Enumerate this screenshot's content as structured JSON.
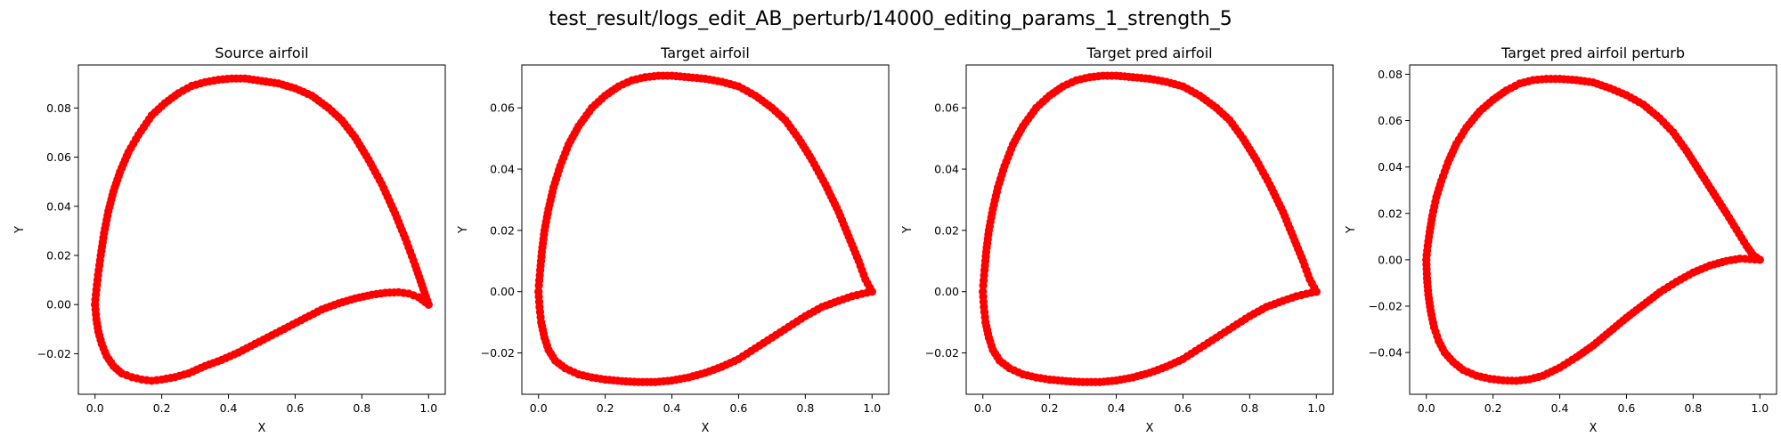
{
  "figure": {
    "suptitle": "test_result/logs_edit_AB_perturb/14000_editing_params_1_strength_5"
  },
  "chart_data": [
    {
      "type": "scatter",
      "title": "Source airfoil",
      "xlabel": "X",
      "ylabel": "Y",
      "color": "#ff0000",
      "xlim": [
        -0.05,
        1.05
      ],
      "ylim": [
        -0.0365,
        0.0975
      ],
      "xticks": [
        0.0,
        0.2,
        0.4,
        0.6,
        0.8,
        1.0
      ],
      "xtick_labels": [
        "0.0",
        "0.2",
        "0.4",
        "0.6",
        "0.8",
        "1.0"
      ],
      "yticks": [
        -0.02,
        0.0,
        0.02,
        0.04,
        0.06,
        0.08
      ],
      "ytick_labels": [
        "−0.02",
        "0.00",
        "0.02",
        "0.04",
        "0.06",
        "0.08"
      ],
      "upper": [
        [
          1.0,
          0.0
        ],
        [
          0.98,
          0.008
        ],
        [
          0.96,
          0.016
        ],
        [
          0.93,
          0.027
        ],
        [
          0.9,
          0.037
        ],
        [
          0.86,
          0.049
        ],
        [
          0.82,
          0.059
        ],
        [
          0.78,
          0.068
        ],
        [
          0.74,
          0.075
        ],
        [
          0.7,
          0.08
        ],
        [
          0.65,
          0.085
        ],
        [
          0.6,
          0.088
        ],
        [
          0.55,
          0.09
        ],
        [
          0.5,
          0.091
        ],
        [
          0.45,
          0.092
        ],
        [
          0.41,
          0.092
        ],
        [
          0.37,
          0.0915
        ],
        [
          0.33,
          0.0905
        ],
        [
          0.29,
          0.089
        ],
        [
          0.25,
          0.086
        ],
        [
          0.21,
          0.082
        ],
        [
          0.17,
          0.077
        ],
        [
          0.13,
          0.069
        ],
        [
          0.1,
          0.062
        ],
        [
          0.075,
          0.054
        ],
        [
          0.055,
          0.046
        ],
        [
          0.04,
          0.038
        ],
        [
          0.027,
          0.029
        ],
        [
          0.017,
          0.02
        ],
        [
          0.009,
          0.012
        ],
        [
          0.004,
          0.006
        ],
        [
          0.001,
          0.002
        ],
        [
          0.0,
          0.0
        ]
      ],
      "lower": [
        [
          0.0,
          0.0
        ],
        [
          0.004,
          -0.006
        ],
        [
          0.01,
          -0.011
        ],
        [
          0.02,
          -0.016
        ],
        [
          0.035,
          -0.021
        ],
        [
          0.055,
          -0.025
        ],
        [
          0.08,
          -0.028
        ],
        [
          0.11,
          -0.0295
        ],
        [
          0.14,
          -0.0305
        ],
        [
          0.17,
          -0.031
        ],
        [
          0.2,
          -0.0305
        ],
        [
          0.24,
          -0.0295
        ],
        [
          0.28,
          -0.028
        ],
        [
          0.33,
          -0.025
        ],
        [
          0.38,
          -0.0225
        ],
        [
          0.43,
          -0.0195
        ],
        [
          0.48,
          -0.016
        ],
        [
          0.53,
          -0.0125
        ],
        [
          0.58,
          -0.009
        ],
        [
          0.63,
          -0.0055
        ],
        [
          0.68,
          -0.002
        ],
        [
          0.73,
          0.0005
        ],
        [
          0.78,
          0.0025
        ],
        [
          0.83,
          0.004
        ],
        [
          0.87,
          0.0048
        ],
        [
          0.91,
          0.005
        ],
        [
          0.94,
          0.0045
        ],
        [
          0.97,
          0.003
        ],
        [
          0.99,
          0.001
        ],
        [
          1.0,
          0.0
        ]
      ]
    },
    {
      "type": "scatter",
      "title": "Target airfoil",
      "xlabel": "X",
      "ylabel": "Y",
      "color": "#ff0000",
      "xlim": [
        -0.05,
        1.05
      ],
      "ylim": [
        -0.0335,
        0.074
      ],
      "xticks": [
        0.0,
        0.2,
        0.4,
        0.6,
        0.8,
        1.0
      ],
      "xtick_labels": [
        "0.0",
        "0.2",
        "0.4",
        "0.6",
        "0.8",
        "1.0"
      ],
      "yticks": [
        -0.02,
        0.0,
        0.02,
        0.04,
        0.06
      ],
      "ytick_labels": [
        "−0.02",
        "0.00",
        "0.02",
        "0.04",
        "0.06"
      ],
      "upper": [
        [
          1.0,
          0.0
        ],
        [
          0.98,
          0.004
        ],
        [
          0.96,
          0.01
        ],
        [
          0.93,
          0.018
        ],
        [
          0.9,
          0.026
        ],
        [
          0.86,
          0.035
        ],
        [
          0.82,
          0.043
        ],
        [
          0.78,
          0.05
        ],
        [
          0.74,
          0.056
        ],
        [
          0.7,
          0.06
        ],
        [
          0.65,
          0.064
        ],
        [
          0.6,
          0.067
        ],
        [
          0.55,
          0.0685
        ],
        [
          0.5,
          0.0695
        ],
        [
          0.45,
          0.07
        ],
        [
          0.4,
          0.0705
        ],
        [
          0.36,
          0.0705
        ],
        [
          0.32,
          0.07
        ],
        [
          0.28,
          0.069
        ],
        [
          0.24,
          0.067
        ],
        [
          0.2,
          0.064
        ],
        [
          0.16,
          0.06
        ],
        [
          0.12,
          0.054
        ],
        [
          0.09,
          0.048
        ],
        [
          0.065,
          0.041
        ],
        [
          0.045,
          0.034
        ],
        [
          0.03,
          0.027
        ],
        [
          0.018,
          0.02
        ],
        [
          0.01,
          0.013
        ],
        [
          0.005,
          0.007
        ],
        [
          0.001,
          0.002
        ],
        [
          0.0,
          0.0
        ]
      ],
      "lower": [
        [
          0.0,
          0.0
        ],
        [
          0.003,
          -0.005
        ],
        [
          0.008,
          -0.01
        ],
        [
          0.018,
          -0.015
        ],
        [
          0.03,
          -0.019
        ],
        [
          0.05,
          -0.0225
        ],
        [
          0.08,
          -0.025
        ],
        [
          0.12,
          -0.027
        ],
        [
          0.16,
          -0.028
        ],
        [
          0.2,
          -0.0287
        ],
        [
          0.25,
          -0.0292
        ],
        [
          0.3,
          -0.0295
        ],
        [
          0.35,
          -0.0295
        ],
        [
          0.4,
          -0.029
        ],
        [
          0.45,
          -0.028
        ],
        [
          0.5,
          -0.0265
        ],
        [
          0.55,
          -0.0245
        ],
        [
          0.6,
          -0.022
        ],
        [
          0.65,
          -0.0185
        ],
        [
          0.7,
          -0.015
        ],
        [
          0.75,
          -0.0115
        ],
        [
          0.8,
          -0.008
        ],
        [
          0.85,
          -0.005
        ],
        [
          0.9,
          -0.003
        ],
        [
          0.94,
          -0.0015
        ],
        [
          0.97,
          -0.0007
        ],
        [
          1.0,
          0.0
        ]
      ]
    },
    {
      "type": "scatter",
      "title": "Target pred airfoil",
      "xlabel": "X",
      "ylabel": "Y",
      "color": "#ff0000",
      "xlim": [
        -0.05,
        1.05
      ],
      "ylim": [
        -0.0335,
        0.074
      ],
      "xticks": [
        0.0,
        0.2,
        0.4,
        0.6,
        0.8,
        1.0
      ],
      "xtick_labels": [
        "0.0",
        "0.2",
        "0.4",
        "0.6",
        "0.8",
        "1.0"
      ],
      "yticks": [
        -0.02,
        0.0,
        0.02,
        0.04,
        0.06
      ],
      "ytick_labels": [
        "−0.02",
        "0.00",
        "0.02",
        "0.04",
        "0.06"
      ],
      "upper": [
        [
          1.0,
          0.0
        ],
        [
          0.98,
          0.004
        ],
        [
          0.96,
          0.01
        ],
        [
          0.93,
          0.018
        ],
        [
          0.9,
          0.026
        ],
        [
          0.86,
          0.035
        ],
        [
          0.82,
          0.043
        ],
        [
          0.78,
          0.05
        ],
        [
          0.74,
          0.056
        ],
        [
          0.7,
          0.06
        ],
        [
          0.65,
          0.064
        ],
        [
          0.6,
          0.067
        ],
        [
          0.55,
          0.0685
        ],
        [
          0.5,
          0.0695
        ],
        [
          0.45,
          0.07
        ],
        [
          0.4,
          0.0705
        ],
        [
          0.36,
          0.0705
        ],
        [
          0.32,
          0.07
        ],
        [
          0.28,
          0.069
        ],
        [
          0.24,
          0.067
        ],
        [
          0.2,
          0.064
        ],
        [
          0.16,
          0.06
        ],
        [
          0.12,
          0.054
        ],
        [
          0.09,
          0.048
        ],
        [
          0.065,
          0.041
        ],
        [
          0.045,
          0.034
        ],
        [
          0.03,
          0.027
        ],
        [
          0.018,
          0.02
        ],
        [
          0.01,
          0.013
        ],
        [
          0.005,
          0.007
        ],
        [
          0.001,
          0.002
        ],
        [
          0.0,
          0.0
        ]
      ],
      "lower": [
        [
          0.0,
          0.0
        ],
        [
          0.003,
          -0.005
        ],
        [
          0.008,
          -0.01
        ],
        [
          0.018,
          -0.015
        ],
        [
          0.03,
          -0.019
        ],
        [
          0.05,
          -0.0225
        ],
        [
          0.08,
          -0.025
        ],
        [
          0.12,
          -0.027
        ],
        [
          0.16,
          -0.028
        ],
        [
          0.2,
          -0.0287
        ],
        [
          0.25,
          -0.0292
        ],
        [
          0.3,
          -0.0295
        ],
        [
          0.35,
          -0.0295
        ],
        [
          0.4,
          -0.029
        ],
        [
          0.45,
          -0.028
        ],
        [
          0.5,
          -0.0265
        ],
        [
          0.55,
          -0.0245
        ],
        [
          0.6,
          -0.022
        ],
        [
          0.65,
          -0.0185
        ],
        [
          0.7,
          -0.015
        ],
        [
          0.75,
          -0.0115
        ],
        [
          0.8,
          -0.008
        ],
        [
          0.85,
          -0.005
        ],
        [
          0.9,
          -0.003
        ],
        [
          0.94,
          -0.0015
        ],
        [
          0.97,
          -0.0007
        ],
        [
          1.0,
          0.0
        ]
      ]
    },
    {
      "type": "scatter",
      "title": "Target pred airfoil perturb",
      "xlabel": "X",
      "ylabel": "Y",
      "color": "#ff0000",
      "xlim": [
        -0.05,
        1.05
      ],
      "ylim": [
        -0.058,
        0.084
      ],
      "xticks": [
        0.0,
        0.2,
        0.4,
        0.6,
        0.8,
        1.0
      ],
      "xtick_labels": [
        "0.0",
        "0.2",
        "0.4",
        "0.6",
        "0.8",
        "1.0"
      ],
      "yticks": [
        -0.04,
        -0.02,
        0.0,
        0.02,
        0.04,
        0.06,
        0.08
      ],
      "ytick_labels": [
        "−0.04",
        "−0.02",
        "0.00",
        "0.02",
        "0.04",
        "0.06",
        "0.08"
      ],
      "upper": [
        [
          1.0,
          0.0
        ],
        [
          0.98,
          0.002
        ],
        [
          0.96,
          0.006
        ],
        [
          0.93,
          0.013
        ],
        [
          0.9,
          0.02
        ],
        [
          0.86,
          0.029
        ],
        [
          0.82,
          0.038
        ],
        [
          0.78,
          0.047
        ],
        [
          0.74,
          0.055
        ],
        [
          0.7,
          0.061
        ],
        [
          0.65,
          0.067
        ],
        [
          0.6,
          0.071
        ],
        [
          0.55,
          0.074
        ],
        [
          0.5,
          0.0765
        ],
        [
          0.45,
          0.0775
        ],
        [
          0.4,
          0.078
        ],
        [
          0.36,
          0.078
        ],
        [
          0.32,
          0.0775
        ],
        [
          0.28,
          0.076
        ],
        [
          0.24,
          0.073
        ],
        [
          0.2,
          0.069
        ],
        [
          0.16,
          0.064
        ],
        [
          0.12,
          0.057
        ],
        [
          0.09,
          0.05
        ],
        [
          0.065,
          0.042
        ],
        [
          0.045,
          0.034
        ],
        [
          0.03,
          0.027
        ],
        [
          0.018,
          0.019
        ],
        [
          0.01,
          0.012
        ],
        [
          0.004,
          0.006
        ],
        [
          0.001,
          0.002
        ],
        [
          0.0,
          0.0
        ]
      ],
      "lower": [
        [
          0.0,
          0.0
        ],
        [
          0.002,
          -0.008
        ],
        [
          0.006,
          -0.015
        ],
        [
          0.013,
          -0.022
        ],
        [
          0.023,
          -0.029
        ],
        [
          0.037,
          -0.035
        ],
        [
          0.055,
          -0.04
        ],
        [
          0.08,
          -0.044
        ],
        [
          0.11,
          -0.0475
        ],
        [
          0.15,
          -0.05
        ],
        [
          0.19,
          -0.0513
        ],
        [
          0.23,
          -0.052
        ],
        [
          0.27,
          -0.0522
        ],
        [
          0.31,
          -0.0515
        ],
        [
          0.35,
          -0.05
        ],
        [
          0.4,
          -0.0465
        ],
        [
          0.45,
          -0.042
        ],
        [
          0.5,
          -0.037
        ],
        [
          0.55,
          -0.031
        ],
        [
          0.6,
          -0.025
        ],
        [
          0.65,
          -0.0195
        ],
        [
          0.7,
          -0.014
        ],
        [
          0.75,
          -0.0095
        ],
        [
          0.8,
          -0.0055
        ],
        [
          0.85,
          -0.0025
        ],
        [
          0.9,
          -0.0005
        ],
        [
          0.94,
          0.0005
        ],
        [
          0.97,
          0.0003
        ],
        [
          1.0,
          0.0
        ]
      ]
    }
  ]
}
